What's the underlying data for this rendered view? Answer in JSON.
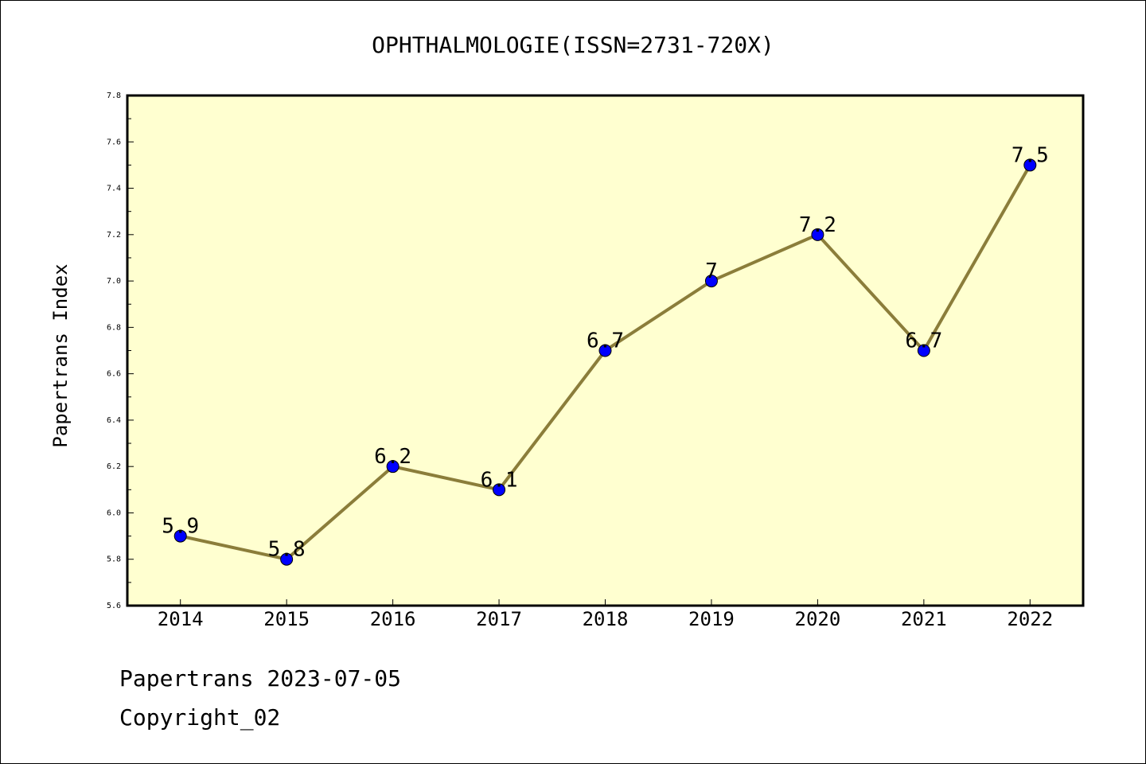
{
  "chart_data": {
    "type": "line",
    "title": "OPHTHALMOLOGIE(ISSN=2731-720X)",
    "xlabel": "",
    "ylabel": "Papertrans Index",
    "categories": [
      "2014",
      "2015",
      "2016",
      "2017",
      "2018",
      "2019",
      "2020",
      "2021",
      "2022"
    ],
    "series": [
      {
        "values": [
          5.9,
          5.8,
          6.2,
          6.1,
          6.7,
          7.0,
          7.2,
          6.7,
          7.5
        ]
      }
    ],
    "data_labels": [
      "5.9",
      "5.8",
      "6.2",
      "6.1",
      "6.7",
      "7",
      "7.2",
      "6.7",
      "7.5"
    ],
    "ylim": [
      5.6,
      7.8
    ],
    "yticks": [
      "5.6",
      "5.8",
      "6.0",
      "6.2",
      "6.4",
      "6.6",
      "6.8",
      "7.0",
      "7.2",
      "7.4",
      "7.6",
      "7.8"
    ],
    "grid": false,
    "legend": "none",
    "colors": {
      "plot_background": "#ffffd0",
      "line": "#8b7d3a",
      "marker": "#0000ff"
    }
  },
  "footer": {
    "date_line": "Papertrans 2023-07-05",
    "copyright_line": "Copyright_02"
  }
}
